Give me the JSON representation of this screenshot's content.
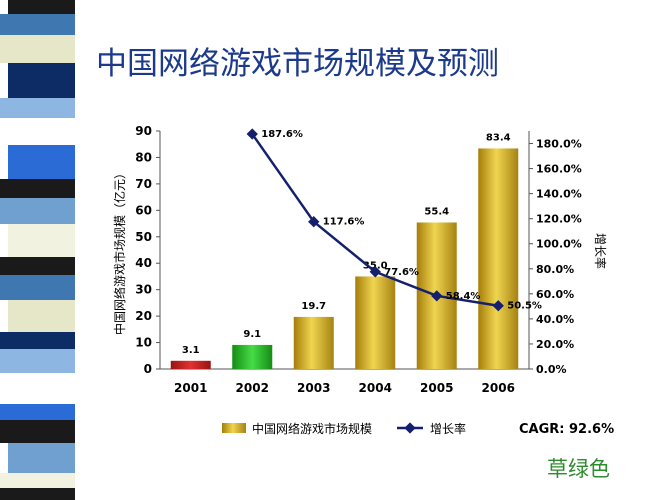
{
  "slide": {
    "title": "中国网络游戏市场规模及预测",
    "footnote": "草绿色",
    "stripe_colors": [
      "#1a1a1a",
      "#3f78b0",
      "#e6e6c8",
      "#0d2c66",
      "#8db6e3",
      "#ffffff",
      "#2a6bd6",
      "#1a1a1a",
      "#6fa0d0",
      "#f2f2e0"
    ]
  },
  "chart_data": {
    "type": "bar+line",
    "categories": [
      "2001",
      "2002",
      "2003",
      "2004",
      "2005",
      "2006"
    ],
    "series": [
      {
        "name": "中国网络游戏市场规模",
        "kind": "bar",
        "axis": "left",
        "values": [
          3.1,
          9.1,
          19.7,
          35.0,
          55.4,
          83.4
        ],
        "labels": [
          "3.1",
          "9.1",
          "19.7",
          "35.0",
          "55.4",
          "83.4"
        ],
        "colors": [
          "#d42828",
          "#32c832",
          "#e2c030",
          "#e2c030",
          "#e2c030",
          "#e2c030"
        ]
      },
      {
        "name": "增长率",
        "kind": "line",
        "axis": "right",
        "values": [
          null,
          187.6,
          117.6,
          77.6,
          58.4,
          50.5
        ],
        "labels": [
          "",
          "187.6%",
          "117.6%",
          "77.6%",
          "58.4%",
          "50.5%"
        ],
        "color": "#14206e"
      }
    ],
    "ylabel": "中国网络游戏市场规模（亿元）",
    "y2label": "增长率",
    "ylim": [
      0,
      90
    ],
    "yticks": [
      "0",
      "10",
      "20",
      "30",
      "40",
      "50",
      "60",
      "70",
      "80",
      "90"
    ],
    "y2lim": [
      0,
      190
    ],
    "y2ticks": [
      "0.0%",
      "20.0%",
      "40.0%",
      "60.0%",
      "80.0%",
      "100.0%",
      "120.0%",
      "140.0%",
      "160.0%",
      "180.0%"
    ],
    "annotation": "CAGR: 92.6%",
    "legend_position": "bottom",
    "grid": false
  }
}
